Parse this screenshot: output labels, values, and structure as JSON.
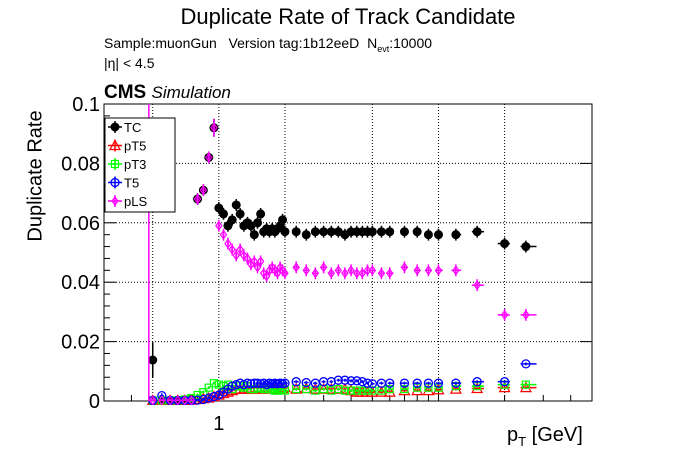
{
  "title": "Duplicate Rate of Track Candidate",
  "info": {
    "sample": "Sample:muonGun",
    "version": "Version tag:1b12eeD",
    "nevt_label": "N",
    "nevt_sub": "evt",
    "nevt_value": ":10000",
    "eta_cut": "|η| < 4.5"
  },
  "cms": "CMS",
  "simulation": "Simulation",
  "colors": {
    "TC": "#000000",
    "pT5": "#ff0000",
    "pT3": "#00ff00",
    "T5": "#0000ff",
    "pLS": "#ff00ff"
  },
  "chart_data": {
    "type": "scatter",
    "title": "Duplicate Rate of Track Candidate",
    "xlabel_main": "p",
    "xlabel_sub": "T",
    "xlabel_unit": "[GeV]",
    "ylabel": "Duplicate Rate",
    "xscale": "log",
    "xlim": [
      0.3,
      50
    ],
    "ylim": [
      0,
      0.1
    ],
    "x_ticks": [
      {
        "value": 1,
        "label": "1"
      }
    ],
    "y_ticks": [
      {
        "value": 0,
        "label": "0"
      },
      {
        "value": 0.02,
        "label": "0.02"
      },
      {
        "value": 0.04,
        "label": "0.04"
      },
      {
        "value": 0.06,
        "label": "0.06"
      },
      {
        "value": 0.08,
        "label": "0.08"
      },
      {
        "value": 0.1,
        "label": "0.1"
      }
    ],
    "grid": true,
    "legend_position": "top-left",
    "x": [
      0.5,
      0.55,
      0.6,
      0.65,
      0.7,
      0.75,
      0.8,
      0.85,
      0.9,
      0.95,
      1.0,
      1.05,
      1.1,
      1.15,
      1.2,
      1.25,
      1.3,
      1.35,
      1.4,
      1.45,
      1.5,
      1.55,
      1.6,
      1.65,
      1.7,
      1.75,
      1.8,
      1.85,
      1.9,
      1.95,
      2.0,
      2.25,
      2.5,
      2.75,
      3.0,
      3.25,
      3.5,
      3.75,
      4.0,
      4.25,
      4.5,
      4.75,
      5.0,
      5.5,
      6.0,
      7.0,
      8.0,
      9.0,
      10.0,
      12.0,
      15.0,
      20.0,
      25.0
    ],
    "series": [
      {
        "name": "TC",
        "marker": "filled-circle",
        "values": [
          0.0138,
          0.0002,
          0.0002,
          0.0002,
          0.0002,
          0.0005,
          0.068,
          0.071,
          0.082,
          0.092,
          0.065,
          0.063,
          0.059,
          0.061,
          0.066,
          0.063,
          0.059,
          0.06,
          0.059,
          0.056,
          0.06,
          0.063,
          0.057,
          0.058,
          0.057,
          0.058,
          0.057,
          0.058,
          0.059,
          0.061,
          0.057,
          0.057,
          0.056,
          0.057,
          0.057,
          0.057,
          0.057,
          0.056,
          0.057,
          0.057,
          0.057,
          0.057,
          0.057,
          0.057,
          0.057,
          0.057,
          0.057,
          0.056,
          0.056,
          0.056,
          0.057,
          0.053,
          0.052
        ],
        "errors": [
          0.006,
          0.0,
          0.0,
          0.0,
          0.0,
          0.0,
          0.002,
          0.002,
          0.002,
          0.003,
          0.002,
          0.002,
          0.002,
          0.002,
          0.002,
          0.002,
          0.002,
          0.002,
          0.002,
          0.002,
          0.002,
          0.002,
          0.002,
          0.002,
          0.002,
          0.002,
          0.002,
          0.002,
          0.002,
          0.002,
          0.002,
          0.002,
          0.002,
          0.002,
          0.002,
          0.002,
          0.002,
          0.002,
          0.002,
          0.002,
          0.002,
          0.002,
          0.002,
          0.002,
          0.002,
          0.002,
          0.002,
          0.002,
          0.002,
          0.002,
          0.002,
          0.002,
          0.002
        ]
      },
      {
        "name": "pT5",
        "marker": "open-triangle",
        "values": [
          0.0002,
          0.0002,
          0.0002,
          0.0002,
          0.0002,
          0.0003,
          0.0005,
          0.0008,
          0.001,
          0.0015,
          0.002,
          0.0025,
          0.003,
          0.0035,
          0.004,
          0.004,
          0.004,
          0.004,
          0.004,
          0.004,
          0.0042,
          0.004,
          0.004,
          0.0042,
          0.004,
          0.0042,
          0.0042,
          0.004,
          0.004,
          0.0042,
          0.0045,
          0.004,
          0.0042,
          0.004,
          0.004,
          0.004,
          0.004,
          0.004,
          0.0035,
          0.003,
          0.003,
          0.003,
          0.003,
          0.003,
          0.003,
          0.0035,
          0.0035,
          0.0035,
          0.0038,
          0.004,
          0.0042,
          0.0045,
          0.0045
        ],
        "errors": [
          0.0005,
          0.0005,
          0.0005,
          0.0005,
          0.0005,
          0.0005,
          0.0005,
          0.0005,
          0.0005,
          0.0005,
          0.0005,
          0.0005,
          0.0005,
          0.0005,
          0.0005,
          0.0005,
          0.0005,
          0.0005,
          0.0005,
          0.0005,
          0.0005,
          0.0005,
          0.0005,
          0.0005,
          0.0005,
          0.0005,
          0.0005,
          0.0005,
          0.0005,
          0.0005,
          0.0005,
          0.0005,
          0.0005,
          0.0005,
          0.0005,
          0.0005,
          0.0005,
          0.0005,
          0.0005,
          0.0005,
          0.0005,
          0.0005,
          0.0005,
          0.0005,
          0.0005,
          0.0005,
          0.0005,
          0.0005,
          0.0005,
          0.0005,
          0.0005,
          0.0005,
          0.0005
        ]
      },
      {
        "name": "pT3",
        "marker": "open-square",
        "values": [
          0.0002,
          0.0002,
          0.0002,
          0.0002,
          0.0005,
          0.001,
          0.002,
          0.003,
          0.0045,
          0.006,
          0.0055,
          0.005,
          0.0055,
          0.004,
          0.005,
          0.005,
          0.0045,
          0.005,
          0.004,
          0.004,
          0.0045,
          0.0045,
          0.004,
          0.004,
          0.004,
          0.004,
          0.0035,
          0.0035,
          0.004,
          0.004,
          0.0035,
          0.004,
          0.004,
          0.0035,
          0.004,
          0.0035,
          0.004,
          0.0035,
          0.0035,
          0.0035,
          0.0035,
          0.0035,
          0.0035,
          0.0035,
          0.004,
          0.004,
          0.0045,
          0.0045,
          0.0045,
          0.005,
          0.005,
          0.0055,
          0.0055
        ],
        "errors": [
          0.0005,
          0.0005,
          0.0005,
          0.0005,
          0.0005,
          0.0005,
          0.0005,
          0.0005,
          0.0005,
          0.0005,
          0.0005,
          0.0005,
          0.0005,
          0.0005,
          0.0005,
          0.0005,
          0.0005,
          0.0005,
          0.0005,
          0.0005,
          0.0005,
          0.0005,
          0.0005,
          0.0005,
          0.0005,
          0.0005,
          0.0005,
          0.0005,
          0.0005,
          0.0005,
          0.0005,
          0.0005,
          0.0005,
          0.0005,
          0.0005,
          0.0005,
          0.0005,
          0.0005,
          0.0005,
          0.0005,
          0.0005,
          0.0005,
          0.0005,
          0.0005,
          0.0005,
          0.0005,
          0.0005,
          0.0005,
          0.0005,
          0.0005,
          0.0005,
          0.0005,
          0.0005
        ]
      },
      {
        "name": "T5",
        "marker": "open-circle",
        "values": [
          0.0002,
          0.0018,
          0.0002,
          0.0002,
          0.0002,
          0.0002,
          0.0003,
          0.0005,
          0.001,
          0.0015,
          0.002,
          0.003,
          0.004,
          0.005,
          0.0055,
          0.006,
          0.0055,
          0.006,
          0.0058,
          0.006,
          0.006,
          0.0058,
          0.006,
          0.0055,
          0.006,
          0.0058,
          0.006,
          0.0058,
          0.006,
          0.0058,
          0.006,
          0.0065,
          0.0062,
          0.006,
          0.0065,
          0.0065,
          0.007,
          0.007,
          0.0068,
          0.0068,
          0.0065,
          0.006,
          0.0058,
          0.006,
          0.006,
          0.006,
          0.006,
          0.006,
          0.006,
          0.006,
          0.0065,
          0.0065,
          0.0125
        ],
        "errors": [
          0.0005,
          0.0008,
          0.0005,
          0.0005,
          0.0005,
          0.0005,
          0.0005,
          0.0005,
          0.0005,
          0.0005,
          0.0005,
          0.0005,
          0.0005,
          0.0005,
          0.0005,
          0.0005,
          0.0005,
          0.0005,
          0.0005,
          0.0005,
          0.0005,
          0.0005,
          0.0005,
          0.0005,
          0.0005,
          0.0005,
          0.0005,
          0.0005,
          0.0005,
          0.0005,
          0.0005,
          0.0005,
          0.0005,
          0.0005,
          0.0005,
          0.0005,
          0.0005,
          0.0005,
          0.0005,
          0.0005,
          0.0005,
          0.0005,
          0.0005,
          0.0005,
          0.0005,
          0.0005,
          0.0005,
          0.0005,
          0.0005,
          0.0005,
          0.0005,
          0.0005,
          0.0005
        ]
      },
      {
        "name": "pLS",
        "marker": "open-diamond",
        "values": [
          0.0002,
          0.0002,
          0.0002,
          0.0002,
          0.0002,
          0.0002,
          0.068,
          0.071,
          0.082,
          0.092,
          0.059,
          0.056,
          0.053,
          0.051,
          0.049,
          0.051,
          0.049,
          0.048,
          0.046,
          0.047,
          0.045,
          0.047,
          0.043,
          0.042,
          0.044,
          0.045,
          0.044,
          0.043,
          0.045,
          0.044,
          0.043,
          0.045,
          0.044,
          0.043,
          0.045,
          0.043,
          0.044,
          0.043,
          0.044,
          0.043,
          0.043,
          0.044,
          0.044,
          0.043,
          0.043,
          0.045,
          0.044,
          0.044,
          0.044,
          0.044,
          0.039,
          0.029,
          0.029
        ],
        "errors": [
          0.0005,
          0.0005,
          0.0005,
          0.0005,
          0.0005,
          0.0005,
          0.002,
          0.002,
          0.002,
          0.003,
          0.002,
          0.002,
          0.002,
          0.002,
          0.002,
          0.002,
          0.002,
          0.002,
          0.002,
          0.002,
          0.002,
          0.002,
          0.002,
          0.002,
          0.002,
          0.002,
          0.002,
          0.002,
          0.002,
          0.002,
          0.002,
          0.002,
          0.002,
          0.002,
          0.002,
          0.002,
          0.002,
          0.002,
          0.002,
          0.002,
          0.002,
          0.002,
          0.002,
          0.002,
          0.002,
          0.002,
          0.002,
          0.002,
          0.002,
          0.002,
          0.002,
          0.002,
          0.002
        ]
      }
    ]
  }
}
